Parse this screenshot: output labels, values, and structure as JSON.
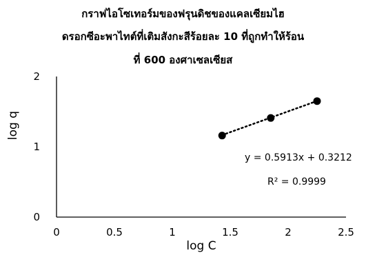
{
  "chart_data": {
    "type": "scatter",
    "title_lines": [
      "กราฟไอโซเทอร์มของฟรุนดิชของแคลเซียมไฮ",
      "ดรอกซีอะพาไทต์ที่เติมสังกะสีร้อยละ 10 ที่ถูกทำให้ร้อน",
      "ที่ 600 องศาเซลเซียส"
    ],
    "xlabel": "log C",
    "ylabel": "log q",
    "xlim": [
      0,
      2.5
    ],
    "ylim": [
      0,
      2
    ],
    "xticks": [
      "0",
      "0.5",
      "1",
      "1.5",
      "2",
      "2.5"
    ],
    "yticks": [
      "0",
      "1",
      "2"
    ],
    "grid": false,
    "series": [
      {
        "x": [
          1.43,
          1.85,
          2.25
        ],
        "y": [
          1.16,
          1.41,
          1.65
        ]
      }
    ],
    "trendline": {
      "type": "linear",
      "slope": 0.5913,
      "intercept": 0.3212,
      "style": "dotted"
    },
    "equation": "y = 0.5913x + 0.3212",
    "r_squared": "R² = 0.9999",
    "colors": {
      "marker": "#000000",
      "axis": "#000000",
      "trendline": "#000000"
    }
  }
}
